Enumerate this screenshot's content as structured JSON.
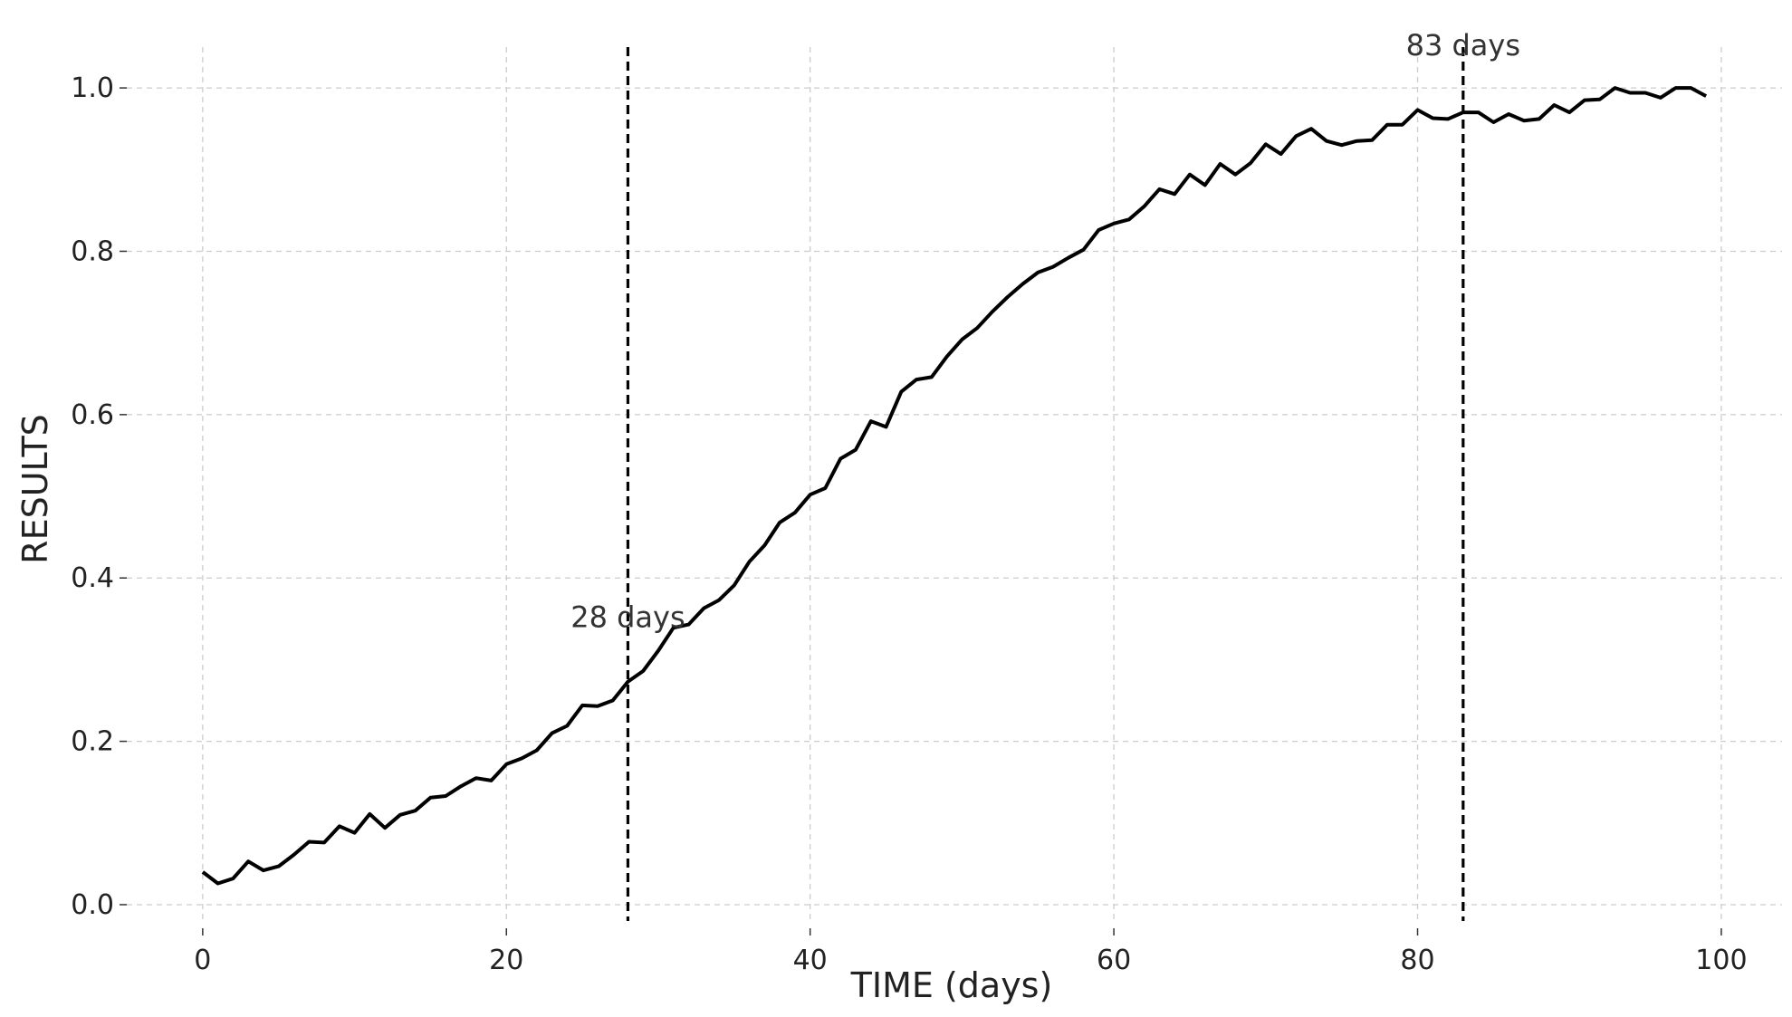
{
  "chart_data": {
    "type": "line",
    "xlabel": "TIME (days)",
    "ylabel": "RESULTS",
    "xlim": [
      -5,
      104
    ],
    "ylim": [
      -0.02,
      1.05
    ],
    "xticks": [
      0,
      20,
      40,
      60,
      80,
      100
    ],
    "yticks": [
      0.0,
      0.2,
      0.4,
      0.6,
      0.8,
      1.0
    ],
    "xtick_labels": [
      "0",
      "20",
      "40",
      "60",
      "80",
      "100"
    ],
    "ytick_labels": [
      "0.0",
      "0.2",
      "0.4",
      "0.6",
      "0.8",
      "1.0"
    ],
    "grid": true,
    "line_color": "#000000",
    "annotations": [
      {
        "x": 28,
        "label": "28 days",
        "label_y": 0.34
      },
      {
        "x": 83,
        "label": "83 days",
        "label_y": 1.04
      }
    ],
    "series": [
      {
        "x": [
          0,
          1,
          2,
          3,
          4,
          5,
          6,
          7,
          8,
          9,
          10,
          11,
          12,
          13,
          14,
          15,
          16,
          17,
          18,
          19,
          20,
          21,
          22,
          23,
          24,
          25,
          26,
          27,
          28,
          29,
          30,
          31,
          32,
          33,
          34,
          35,
          36,
          37,
          38,
          39,
          40,
          41,
          42,
          43,
          44,
          45,
          46,
          47,
          48,
          49,
          50,
          51,
          52,
          53,
          54,
          55,
          56,
          57,
          58,
          59,
          60,
          61,
          62,
          63,
          64,
          65,
          66,
          67,
          68,
          69,
          70,
          71,
          72,
          73,
          74,
          75,
          76,
          77,
          78,
          79,
          80,
          81,
          82,
          83,
          84,
          85,
          86,
          87,
          88,
          89,
          90,
          91,
          92,
          93,
          94,
          95,
          96,
          97,
          98,
          99
        ],
        "values": [
          0.04,
          0.026,
          0.032,
          0.053,
          0.042,
          0.047,
          0.061,
          0.077,
          0.076,
          0.096,
          0.088,
          0.111,
          0.094,
          0.11,
          0.115,
          0.131,
          0.133,
          0.145,
          0.155,
          0.152,
          0.172,
          0.179,
          0.189,
          0.21,
          0.219,
          0.244,
          0.243,
          0.25,
          0.273,
          0.286,
          0.311,
          0.339,
          0.343,
          0.363,
          0.373,
          0.391,
          0.42,
          0.44,
          0.468,
          0.48,
          0.502,
          0.51,
          0.546,
          0.557,
          0.592,
          0.585,
          0.628,
          0.643,
          0.646,
          0.671,
          0.692,
          0.706,
          0.726,
          0.744,
          0.76,
          0.774,
          0.781,
          0.792,
          0.802,
          0.826,
          0.834,
          0.839,
          0.855,
          0.876,
          0.87,
          0.894,
          0.881,
          0.907,
          0.894,
          0.908,
          0.931,
          0.919,
          0.941,
          0.95,
          0.935,
          0.93,
          0.935,
          0.936,
          0.955,
          0.955,
          0.973,
          0.963,
          0.962,
          0.97,
          0.97,
          0.958,
          0.968,
          0.96,
          0.962,
          0.979,
          0.97,
          0.985,
          0.986,
          1.0,
          0.994,
          0.994,
          0.988,
          1.0,
          1.0,
          0.99
        ]
      }
    ]
  }
}
